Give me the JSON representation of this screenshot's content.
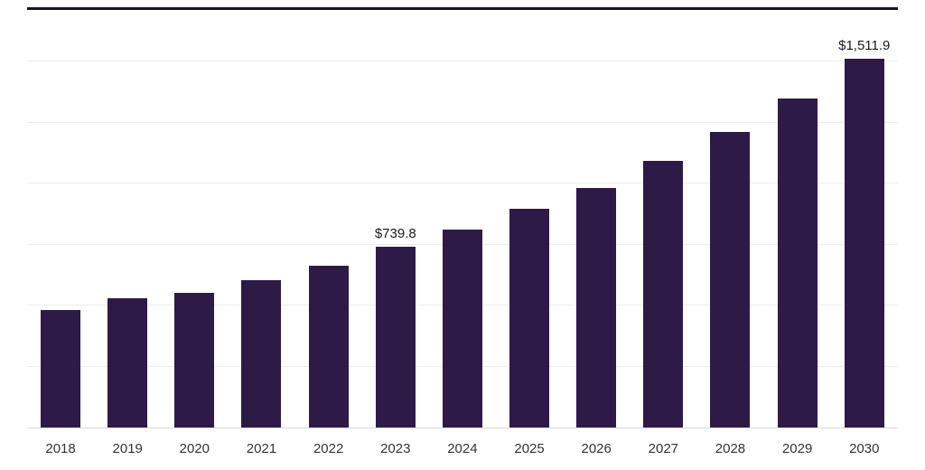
{
  "chart_data": {
    "type": "bar",
    "title": "",
    "categories": [
      "2018",
      "2019",
      "2020",
      "2021",
      "2022",
      "2023",
      "2024",
      "2025",
      "2026",
      "2027",
      "2028",
      "2029",
      "2030"
    ],
    "values": [
      480,
      530,
      552,
      604,
      663,
      739.8,
      811,
      897,
      982,
      1093,
      1212,
      1349,
      1511.9
    ],
    "data_labels": {
      "2023": "$739.8",
      "2030": "$1,511.9"
    },
    "xlabel": "",
    "ylabel": "",
    "ylim": [
      0,
      1712
    ],
    "gridlines": [
      250,
      500,
      750,
      1000,
      1250,
      1500
    ],
    "grid_on": true,
    "legend_position": "none",
    "bar_color": "#2e1a47",
    "grid_color": "#ededf2",
    "axis_line_color": "#d9d9e0",
    "top_border_color": "#19122e",
    "label_color": "#1a1a1a",
    "tick_label_color": "#333333"
  }
}
